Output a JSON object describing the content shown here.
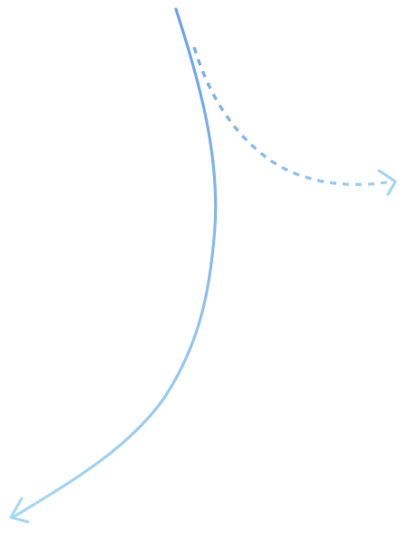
{
  "diagram": {
    "arrows": [
      {
        "id": "main-arrow",
        "style": "solid",
        "direction": "down-left",
        "color_start": "#6fa2ec",
        "color_end": "#a9d8f5"
      },
      {
        "id": "branch-arrow",
        "style": "dashed",
        "direction": "right",
        "color_start": "#7eaeee",
        "color_end": "#a6d6f3"
      }
    ],
    "labels": []
  }
}
